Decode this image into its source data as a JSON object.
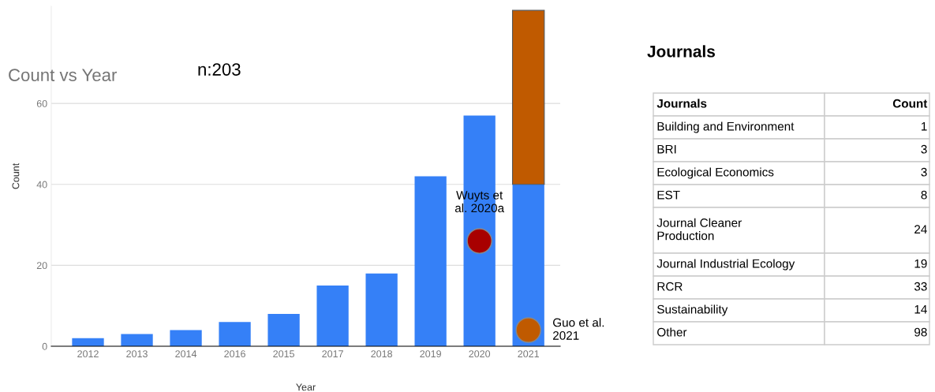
{
  "chart_data": [
    {
      "type": "bar",
      "title": "Count vs Year",
      "xlabel": "Year",
      "ylabel": "Count",
      "stacked": true,
      "categories": [
        "2012",
        "2013",
        "2014",
        "2016",
        "2015",
        "2017",
        "2018",
        "2019",
        "2020",
        "2021"
      ],
      "series": [
        {
          "color": "#3580f7",
          "values": [
            2,
            3,
            4,
            6,
            8,
            15,
            18,
            42,
            57,
            40
          ]
        },
        {
          "color": "#c05a00",
          "values": [
            null,
            null,
            null,
            null,
            null,
            null,
            null,
            null,
            null,
            43
          ]
        },
        {
          "type": "scatter",
          "name": "Wuyts et\nal. 2020a",
          "color": "#a80000",
          "values": [
            null,
            null,
            null,
            null,
            null,
            null,
            null,
            null,
            26,
            null
          ]
        },
        {
          "type": "scatter",
          "name": "Guo et al.\n2021",
          "color": "#c05a00",
          "values": [
            null,
            null,
            null,
            null,
            null,
            null,
            null,
            null,
            null,
            4
          ]
        }
      ],
      "ylim": [
        0,
        84
      ],
      "yticks": [
        0,
        20,
        40,
        60
      ],
      "grid": "y",
      "marker": "circle",
      "annotations": [
        "n:203"
      ]
    },
    {
      "type": "other",
      "title": "Journals",
      "xlabel": "Journals",
      "ylabel": "Count",
      "categories": [
        "Building and Environment",
        "BRI",
        "Ecological Economics",
        "EST",
        "Journal Cleaner\nProduction",
        "Journal Industrial Ecology",
        "RCR",
        "Sustainability",
        "Other"
      ],
      "values": [
        1,
        3,
        3,
        8,
        24,
        19,
        33,
        14,
        98
      ],
      "data_labels": true
    }
  ]
}
